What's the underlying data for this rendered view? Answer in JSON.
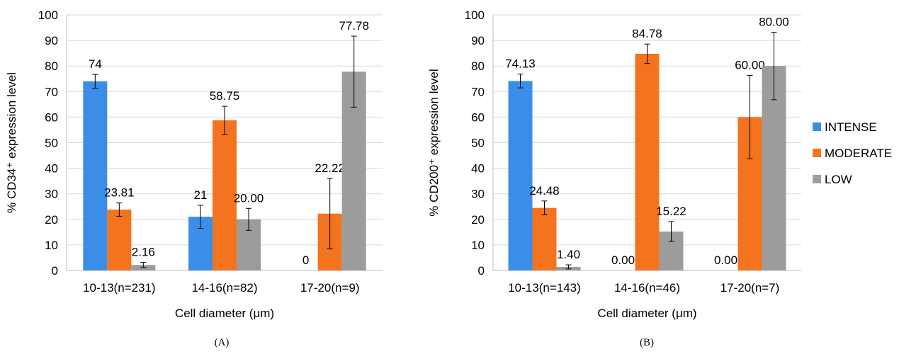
{
  "chart_data": [
    {
      "type": "bar",
      "panel_label": "(A)",
      "xlabel": "Cell diameter (μm)",
      "ylabel": "% CD34⁺ expression level",
      "ylim": [
        0,
        100
      ],
      "yticks": [
        "0",
        "10",
        "20",
        "30",
        "40",
        "50",
        "60",
        "70",
        "80",
        "90",
        "100"
      ],
      "grid": true,
      "categories": [
        "10-13(n=231)",
        "14-16(n=82)",
        "17-20(n=9)"
      ],
      "series": [
        {
          "name": "INTENSE",
          "color": "#3b8ee8",
          "values": [
            74,
            21,
            0
          ],
          "errors": [
            2.7,
            4.5,
            0
          ],
          "labels": [
            "74",
            "21",
            "0"
          ]
        },
        {
          "name": "MODERATE",
          "color": "#f4731f",
          "values": [
            23.81,
            58.75,
            22.22
          ],
          "errors": [
            2.6,
            5.5,
            13.8
          ],
          "labels": [
            "23.81",
            "58.75",
            "22.22"
          ]
        },
        {
          "name": "LOW",
          "color": "#9c9c9c",
          "values": [
            2.16,
            20.0,
            77.78
          ],
          "errors": [
            1.0,
            4.3,
            13.9
          ],
          "labels": [
            "2.16",
            "20.00",
            "77.78"
          ]
        }
      ]
    },
    {
      "type": "bar",
      "panel_label": "(B)",
      "xlabel": "Cell diameter (μm)",
      "ylabel": "% CD200⁺ expression level",
      "ylim": [
        0,
        100
      ],
      "yticks": [
        "0",
        "10",
        "20",
        "30",
        "40",
        "50",
        "60",
        "70",
        "80",
        "90",
        "100"
      ],
      "grid": true,
      "legend_position": "right",
      "categories": [
        "10-13(n=143)",
        "14-16(n=46)",
        "17-20(n=7)"
      ],
      "series": [
        {
          "name": "INTENSE",
          "color": "#3b8ee8",
          "values": [
            74.13,
            0,
            0
          ],
          "errors": [
            2.7,
            0,
            0
          ],
          "labels": [
            "74.13",
            "0.00",
            "0.00"
          ]
        },
        {
          "name": "MODERATE",
          "color": "#f4731f",
          "values": [
            24.48,
            84.78,
            60.0
          ],
          "errors": [
            2.7,
            3.8,
            16.3
          ],
          "labels": [
            "24.48",
            "84.78",
            "60.00"
          ]
        },
        {
          "name": "LOW",
          "color": "#9c9c9c",
          "values": [
            1.4,
            15.22,
            80.0
          ],
          "errors": [
            0.8,
            3.9,
            13.2
          ],
          "labels": [
            "1.40",
            "15.22",
            "80.00"
          ]
        }
      ]
    }
  ]
}
